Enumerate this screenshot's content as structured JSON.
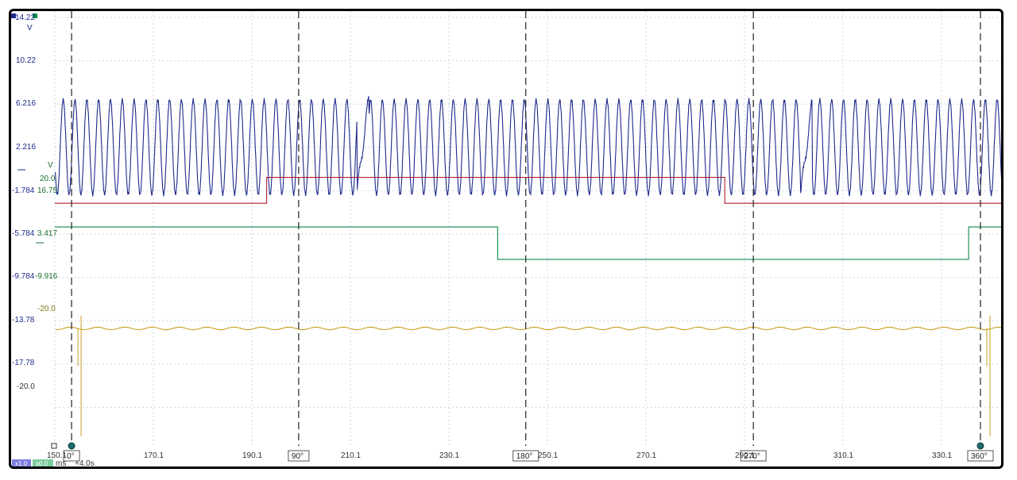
{
  "colors": {
    "grid": "#c9d6e3",
    "channel_a": "#1f2a8c",
    "channel_b": "#b01c2e",
    "channel_c": "#0f8a4a",
    "channel_d": "#c8a020",
    "cursor": "#222222",
    "scale_a": "#1f2a8c",
    "scale_b": "#1a6e2e",
    "scale_c": "#7a7a1a",
    "footer_blue": "#7c7ce0",
    "footer_green": "#7ccc9c"
  },
  "scale_a": {
    "unit": "V",
    "ticks": [
      "14.22",
      "10.22",
      "6.216",
      "2.216",
      "-1.784",
      "-5.784",
      "-9.784",
      "-13.78",
      "-17.78"
    ]
  },
  "scale_b": {
    "unit": "V",
    "ticks": [
      "20.0",
      "16.75",
      "3.417",
      "-9.916"
    ]
  },
  "scale_c": {
    "ticks": [
      "-20.0",
      "-20.0"
    ]
  },
  "time_axis": {
    "unit": "ms",
    "start": "150.1",
    "ticks": [
      "170.1",
      "190.1",
      "210.1",
      "230.1",
      "250.1",
      "270.1",
      "290.1",
      "310.1",
      "330.1"
    ],
    "footer_label": "+4.0s",
    "zoom_x": "x1.0",
    "zoom_y": "x0.0"
  },
  "cursors": [
    {
      "label": "0°",
      "t": 153.5
    },
    {
      "label": "90°",
      "t": 199.6
    },
    {
      "label": "180°",
      "t": 245.7
    },
    {
      "label": "270°",
      "t": 291.9
    },
    {
      "label": "360°",
      "t": 338.0
    }
  ],
  "chart_data": {
    "type": "line",
    "x_range": [
      150.1,
      345.0
    ],
    "y_range": [
      -22.0,
      14.22
    ],
    "x_ticks": [
      150.1,
      170.1,
      190.1,
      210.1,
      230.1,
      250.1,
      270.1,
      290.1,
      310.1,
      330.1
    ],
    "series": [
      {
        "channel": "a",
        "kind": "sine",
        "center": 2.2,
        "amplitude": 4.4,
        "period": 2.4,
        "gaps": [
          [
            211.4,
            213.8
          ],
          [
            301.5,
            303.9
          ]
        ]
      },
      {
        "channel": "b",
        "kind": "steps",
        "points": [
          [
            150.1,
            -3.0
          ],
          [
            193.1,
            -3.0
          ],
          [
            193.1,
            -0.6
          ],
          [
            286.1,
            -0.6
          ],
          [
            286.1,
            -3.0
          ],
          [
            345.0,
            -3.0
          ]
        ]
      },
      {
        "channel": "c",
        "kind": "steps",
        "points": [
          [
            150.1,
            -5.2
          ],
          [
            240.0,
            -5.2
          ],
          [
            240.0,
            -8.2
          ],
          [
            335.6,
            -8.2
          ],
          [
            335.6,
            -5.2
          ],
          [
            345.0,
            -5.2
          ]
        ]
      },
      {
        "channel": "d",
        "kind": "spikes",
        "level": -14.6,
        "spike_times": [
          153.5,
          338.0
        ]
      }
    ]
  }
}
